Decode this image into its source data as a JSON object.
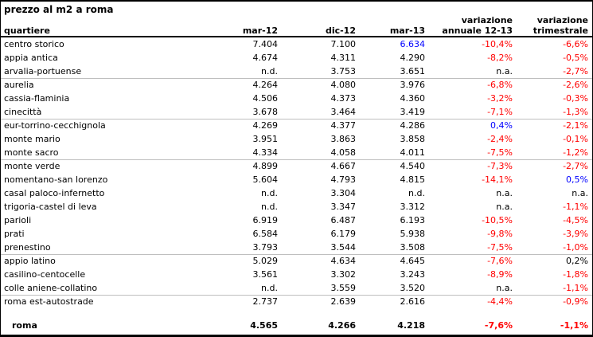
{
  "title": "prezzo al m2 a roma",
  "colors": {
    "negative": "#ff0000",
    "positive": "#0000ff",
    "text": "#000000",
    "grid_line": "#bfbfbf",
    "border": "#000000",
    "background": "#ffffff"
  },
  "header": {
    "quartiere": "quartiere",
    "mar12": "mar-12",
    "dic12": "dic-12",
    "mar13": "mar-13",
    "var_annuale_line1": "variazione",
    "var_annuale_line2": "annuale 12-13",
    "var_trimestrale_line1": "variazione",
    "var_trimestrale_line2": "trimestrale"
  },
  "group_divider_row_indexes": [
    3,
    6,
    9,
    16,
    19
  ],
  "rows": [
    {
      "name": "centro storico",
      "values": [
        "7.404",
        "7.100",
        "6.634",
        "-10,4%",
        "-6,6%"
      ],
      "value_colors": [
        null,
        null,
        "positive",
        "negative",
        "negative"
      ]
    },
    {
      "name": "appia antica",
      "values": [
        "4.674",
        "4.311",
        "4.290",
        "-8,2%",
        "-0,5%"
      ],
      "value_colors": [
        null,
        null,
        null,
        "negative",
        "negative"
      ]
    },
    {
      "name": "arvalia-portuense",
      "values": [
        "n.d.",
        "3.753",
        "3.651",
        "n.a.",
        "-2,7%"
      ],
      "value_colors": [
        null,
        null,
        null,
        null,
        "negative"
      ]
    },
    {
      "name": "aurelia",
      "values": [
        "4.264",
        "4.080",
        "3.976",
        "-6,8%",
        "-2,6%"
      ],
      "value_colors": [
        null,
        null,
        null,
        "negative",
        "negative"
      ]
    },
    {
      "name": "cassia-flaminia",
      "values": [
        "4.506",
        "4.373",
        "4.360",
        "-3,2%",
        "-0,3%"
      ],
      "value_colors": [
        null,
        null,
        null,
        "negative",
        "negative"
      ]
    },
    {
      "name": "cinecittà",
      "values": [
        "3.678",
        "3.464",
        "3.419",
        "-7,1%",
        "-1,3%"
      ],
      "value_colors": [
        null,
        null,
        null,
        "negative",
        "negative"
      ]
    },
    {
      "name": "eur-torrino-cecchignola",
      "values": [
        "4.269",
        "4.377",
        "4.286",
        "0,4%",
        "-2,1%"
      ],
      "value_colors": [
        null,
        null,
        null,
        "positive",
        "negative"
      ]
    },
    {
      "name": "monte mario",
      "values": [
        "3.951",
        "3.863",
        "3.858",
        "-2,4%",
        "-0,1%"
      ],
      "value_colors": [
        null,
        null,
        null,
        "negative",
        "negative"
      ]
    },
    {
      "name": "monte sacro",
      "values": [
        "4.334",
        "4.058",
        "4.011",
        "-7,5%",
        "-1,2%"
      ],
      "value_colors": [
        null,
        null,
        null,
        "negative",
        "negative"
      ]
    },
    {
      "name": "monte verde",
      "values": [
        "4.899",
        "4.667",
        "4.540",
        "-7,3%",
        "-2,7%"
      ],
      "value_colors": [
        null,
        null,
        null,
        "negative",
        "negative"
      ]
    },
    {
      "name": "nomentano-san lorenzo",
      "values": [
        "5.604",
        "4.793",
        "4.815",
        "-14,1%",
        "0,5%"
      ],
      "value_colors": [
        null,
        null,
        null,
        "negative",
        "positive"
      ]
    },
    {
      "name": "casal paloco-infernetto",
      "values": [
        "n.d.",
        "3.304",
        "n.d.",
        "n.a.",
        "n.a."
      ],
      "value_colors": [
        null,
        null,
        null,
        null,
        null
      ]
    },
    {
      "name": "trigoria-castel di leva",
      "values": [
        "n.d.",
        "3.347",
        "3.312",
        "n.a.",
        "-1,1%"
      ],
      "value_colors": [
        null,
        null,
        null,
        null,
        "negative"
      ]
    },
    {
      "name": "parioli",
      "values": [
        "6.919",
        "6.487",
        "6.193",
        "-10,5%",
        "-4,5%"
      ],
      "value_colors": [
        null,
        null,
        null,
        "negative",
        "negative"
      ]
    },
    {
      "name": "prati",
      "values": [
        "6.584",
        "6.179",
        "5.938",
        "-9,8%",
        "-3,9%"
      ],
      "value_colors": [
        null,
        null,
        null,
        "negative",
        "negative"
      ]
    },
    {
      "name": "prenestino",
      "values": [
        "3.793",
        "3.544",
        "3.508",
        "-7,5%",
        "-1,0%"
      ],
      "value_colors": [
        null,
        null,
        null,
        "negative",
        "negative"
      ]
    },
    {
      "name": "appio latino",
      "values": [
        "5.029",
        "4.634",
        "4.645",
        "-7,6%",
        "0,2%"
      ],
      "value_colors": [
        null,
        null,
        null,
        "negative",
        null
      ]
    },
    {
      "name": "casilino-centocelle",
      "values": [
        "3.561",
        "3.302",
        "3.243",
        "-8,9%",
        "-1,8%"
      ],
      "value_colors": [
        null,
        null,
        null,
        "negative",
        "negative"
      ]
    },
    {
      "name": "colle aniene-collatino",
      "values": [
        "n.d.",
        "3.559",
        "3.520",
        "n.a.",
        "-1,1%"
      ],
      "value_colors": [
        null,
        null,
        null,
        null,
        "negative"
      ]
    },
    {
      "name": "roma est-autostrade",
      "values": [
        "2.737",
        "2.639",
        "2.616",
        "-4,4%",
        "-0,9%"
      ],
      "value_colors": [
        null,
        null,
        null,
        "negative",
        "negative"
      ]
    }
  ],
  "total_row": {
    "name": "roma",
    "values": [
      "4.565",
      "4.266",
      "4.218",
      "-7,6%",
      "-1,1%"
    ],
    "value_colors": [
      null,
      null,
      null,
      "negative",
      "negative"
    ]
  }
}
